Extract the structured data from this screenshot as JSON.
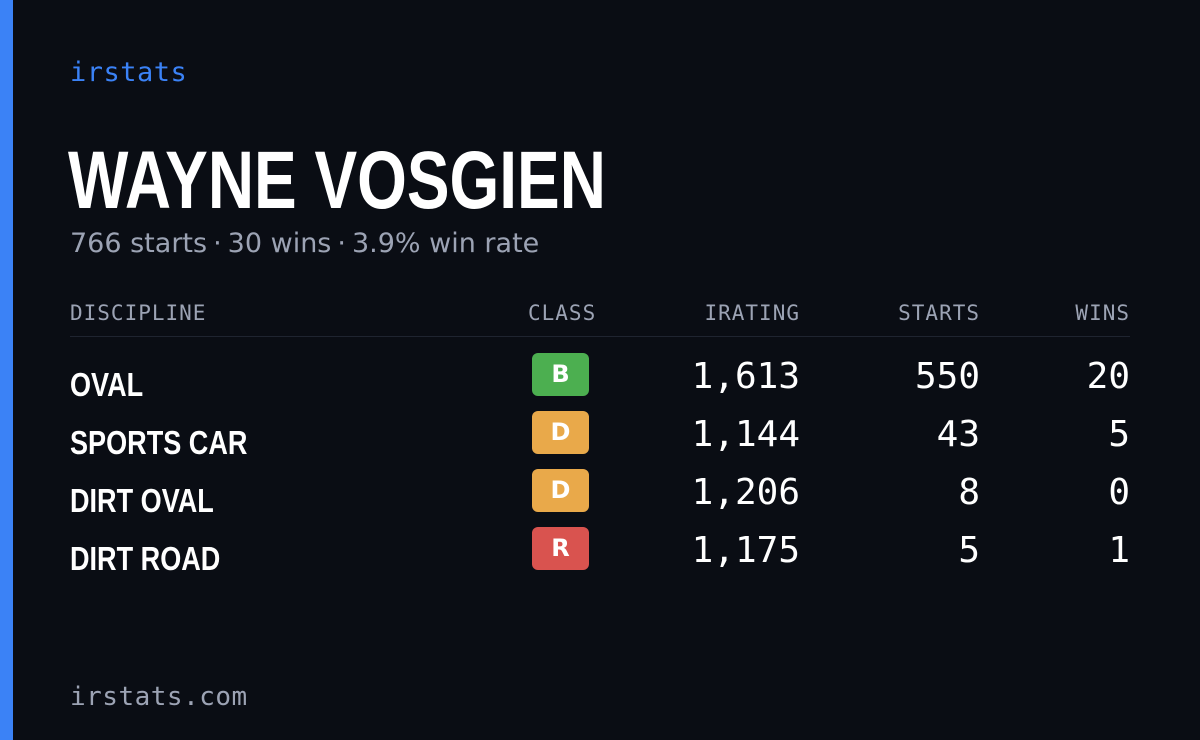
{
  "brand": "irstats",
  "driver": {
    "name": "WAYNE VOSGIEN",
    "starts_text": "766 starts",
    "wins_text": "30 wins",
    "win_rate_text": "3.9% win rate",
    "separator": "·"
  },
  "table": {
    "headers": {
      "discipline": "DISCIPLINE",
      "class": "CLASS",
      "irating": "IRATING",
      "starts": "STARTS",
      "wins": "WINS"
    },
    "rows": [
      {
        "discipline": "OVAL",
        "class": "B",
        "class_color": "#4caf50",
        "irating": "1,613",
        "starts": "550",
        "wins": "20"
      },
      {
        "discipline": "SPORTS CAR",
        "class": "D",
        "class_color": "#e9a94a",
        "irating": "1,144",
        "starts": "43",
        "wins": "5"
      },
      {
        "discipline": "DIRT OVAL",
        "class": "D",
        "class_color": "#e9a94a",
        "irating": "1,206",
        "starts": "8",
        "wins": "0"
      },
      {
        "discipline": "DIRT ROAD",
        "class": "R",
        "class_color": "#d9534f",
        "irating": "1,175",
        "starts": "5",
        "wins": "1"
      }
    ]
  },
  "footer": "irstats.com",
  "colors": {
    "accent": "#3b82f6",
    "background": "#0a0d14",
    "muted_text": "#9ca3b4"
  }
}
